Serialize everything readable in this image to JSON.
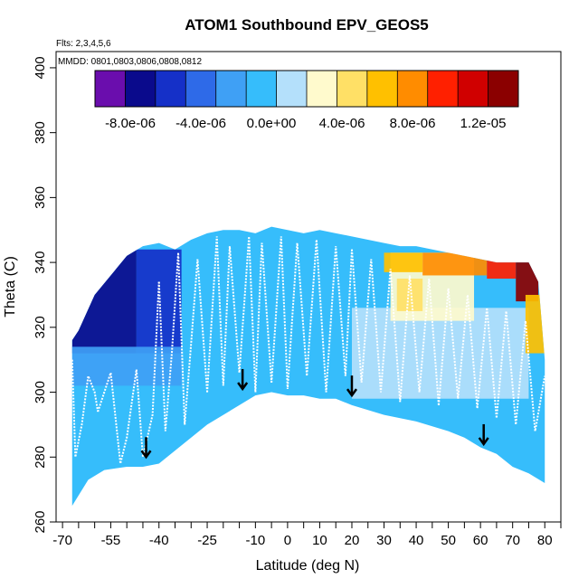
{
  "chart_data": {
    "type": "heatmap",
    "title": "ATOM1 Southbound EPV_GEOS5",
    "flights_note": "Flts: 2,3,4,5,6",
    "dates_note": "MMDD: 0801,0803,0806,0808,0812",
    "xlabel": "Latitude (deg N)",
    "ylabel": "Theta (C)",
    "xlim": [
      -72,
      85
    ],
    "ylim": [
      260,
      405
    ],
    "x_ticks": [
      -70,
      -55,
      -40,
      -25,
      -10,
      0,
      10,
      20,
      30,
      40,
      50,
      60,
      70,
      80
    ],
    "x_tick_labels": [
      "-70",
      "-55",
      "-40",
      "-25",
      "-10",
      "0",
      "10",
      "20",
      "30",
      "40",
      "50",
      "60",
      "70",
      "80"
    ],
    "x_minor_ticks": [
      -65,
      -60,
      -50,
      -45,
      -35,
      -30,
      -20,
      -15,
      -5,
      5,
      15,
      25,
      35,
      45,
      55,
      65,
      75,
      85
    ],
    "y_ticks": [
      260,
      280,
      300,
      320,
      340,
      360,
      380,
      400
    ],
    "y_tick_labels": [
      "260",
      "280",
      "300",
      "320",
      "340",
      "360",
      "380",
      "400"
    ],
    "grid": false,
    "colorbar": {
      "placement": "top",
      "range": [
        -1e-05,
        1.4e-05
      ],
      "ticks": [
        -8e-06,
        -4e-06,
        0,
        4e-06,
        8e-06,
        1.2e-05
      ],
      "tick_labels": [
        "-8.0e-06",
        "-4.0e-06",
        "0.0e+00",
        "4.0e-06",
        "8.0e-06",
        "1.2e-05"
      ],
      "colors": [
        "#6a0dad",
        "#0a0a8c",
        "#1530c8",
        "#2e6ae8",
        "#3fa0f5",
        "#36bdfb",
        "#b4e0fb",
        "#fffacd",
        "#ffe066",
        "#ffc000",
        "#ff8c00",
        "#ff2000",
        "#d00000",
        "#8b0000"
      ]
    },
    "data_domain": {
      "upper_theta": [
        [
          -67,
          316
        ],
        [
          -65,
          319
        ],
        [
          -60,
          330
        ],
        [
          -55,
          336
        ],
        [
          -50,
          342
        ],
        [
          -45,
          345
        ],
        [
          -40,
          346
        ],
        [
          -35,
          344
        ],
        [
          -30,
          347
        ],
        [
          -25,
          349
        ],
        [
          -20,
          350
        ],
        [
          -15,
          350
        ],
        [
          -10,
          349
        ],
        [
          -5,
          351
        ],
        [
          0,
          350
        ],
        [
          5,
          349
        ],
        [
          10,
          350
        ],
        [
          15,
          349
        ],
        [
          20,
          348
        ],
        [
          25,
          347
        ],
        [
          30,
          346
        ],
        [
          35,
          345
        ],
        [
          40,
          345
        ],
        [
          45,
          344
        ],
        [
          50,
          343
        ],
        [
          55,
          342
        ],
        [
          60,
          341
        ],
        [
          65,
          340
        ],
        [
          70,
          340
        ],
        [
          75,
          340
        ],
        [
          78,
          334
        ],
        [
          80,
          310
        ],
        [
          80,
          272
        ]
      ],
      "lower_theta": [
        [
          -67,
          265
        ],
        [
          -62,
          273
        ],
        [
          -57,
          276
        ],
        [
          -50,
          277
        ],
        [
          -45,
          277
        ],
        [
          -40,
          278
        ],
        [
          -30,
          286
        ],
        [
          -25,
          290
        ],
        [
          -15,
          296
        ],
        [
          -10,
          299
        ],
        [
          -5,
          300
        ],
        [
          0,
          299
        ],
        [
          5,
          299
        ],
        [
          10,
          298
        ],
        [
          15,
          298
        ],
        [
          20,
          296
        ],
        [
          30,
          293
        ],
        [
          40,
          291
        ],
        [
          50,
          288
        ],
        [
          55,
          286
        ],
        [
          60,
          283
        ],
        [
          65,
          281
        ],
        [
          70,
          277
        ],
        [
          75,
          275
        ],
        [
          80,
          272
        ]
      ]
    },
    "epv_regions": [
      {
        "x": [
          -67,
          -47
        ],
        "theta": [
          312,
          345
        ],
        "epv": -7e-06
      },
      {
        "x": [
          -47,
          -33
        ],
        "theta": [
          312,
          344
        ],
        "epv": -6e-06
      },
      {
        "x": [
          -67,
          -33
        ],
        "theta": [
          302,
          314
        ],
        "epv": -3e-06
      },
      {
        "x": [
          20,
          75
        ],
        "theta": [
          298,
          326
        ],
        "epv": 1.5e-06
      },
      {
        "x": [
          32,
          58
        ],
        "theta": [
          322,
          343
        ],
        "epv": 2.5e-06
      },
      {
        "x": [
          34,
          42
        ],
        "theta": [
          325,
          335
        ],
        "epv": 4.5e-06
      },
      {
        "x": [
          30,
          42
        ],
        "theta": [
          337,
          343
        ],
        "epv": 7e-06
      },
      {
        "x": [
          42,
          62
        ],
        "theta": [
          336,
          343
        ],
        "epv": 8e-06
      },
      {
        "x": [
          62,
          71
        ],
        "theta": [
          335,
          342
        ],
        "epv": 1e-05
      },
      {
        "x": [
          71,
          78
        ],
        "theta": [
          328,
          341
        ],
        "epv": 1.3e-05
      },
      {
        "x": [
          74,
          80
        ],
        "theta": [
          312,
          330
        ],
        "epv": 7e-06
      }
    ],
    "flight_tracks": [
      {
        "x": [
          -67,
          -66,
          -64,
          -62,
          -60,
          -59
        ],
        "theta": [
          310,
          280,
          290,
          305,
          300,
          294
        ]
      },
      {
        "x": [
          -59,
          -55,
          -52,
          -50,
          -47,
          -45,
          -42,
          -40
        ],
        "theta": [
          294,
          306,
          278,
          286,
          307,
          280,
          293,
          334
        ]
      },
      {
        "x": [
          -40,
          -38,
          -36,
          -34,
          -32,
          -30,
          -28,
          -25
        ],
        "theta": [
          334,
          288,
          312,
          343,
          290,
          315,
          341,
          300
        ]
      },
      {
        "x": [
          -25,
          -22,
          -20,
          -18,
          -15,
          -12,
          -10,
          -8,
          -5
        ],
        "theta": [
          300,
          348,
          302,
          345,
          306,
          348,
          300,
          346,
          303
        ]
      },
      {
        "x": [
          -5,
          -2,
          0,
          3,
          6,
          9,
          12,
          15,
          18,
          20
        ],
        "theta": [
          303,
          348,
          301,
          346,
          305,
          347,
          300,
          345,
          305,
          344
        ]
      },
      {
        "x": [
          20,
          23,
          26,
          29,
          32,
          35,
          38,
          41,
          44,
          47
        ],
        "theta": [
          344,
          303,
          341,
          300,
          338,
          297,
          336,
          300,
          335,
          296
        ]
      },
      {
        "x": [
          47,
          50,
          53,
          56,
          59,
          62,
          65,
          68,
          71,
          74,
          77,
          80
        ],
        "theta": [
          296,
          332,
          298,
          330,
          295,
          326,
          292,
          325,
          290,
          322,
          288,
          305
        ]
      }
    ],
    "arrows": [
      {
        "x": -44,
        "theta": 280
      },
      {
        "x": -14,
        "theta": 301
      },
      {
        "x": 20,
        "theta": 299
      },
      {
        "x": 61,
        "theta": 284
      }
    ]
  }
}
